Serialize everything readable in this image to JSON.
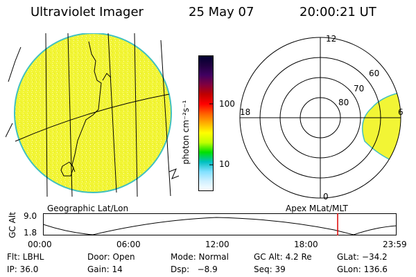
{
  "header": {
    "instrument": "Ultraviolet Imager",
    "date": "25 May 07",
    "time": "20:00:21 UT"
  },
  "colorbar": {
    "label": "photon cm⁻²s⁻¹",
    "ticks": [
      "100",
      "10"
    ],
    "colors": [
      "#000030",
      "#200040",
      "#400060",
      "#800040",
      "#c00000",
      "#ff0000",
      "#ff6000",
      "#ffb000",
      "#ffff00",
      "#c0ff00",
      "#00e000",
      "#00c0c0",
      "#80e0ff",
      "#d0f0ff",
      "#ffffff"
    ]
  },
  "polar_plot": {
    "hour_labels": [
      "12",
      "18",
      "6",
      "0"
    ],
    "lat_labels": [
      "60",
      "70",
      "80"
    ]
  },
  "timeline": {
    "ylabel": "GC Alt",
    "y_ticks": [
      "9.0",
      "1.8"
    ],
    "left_caption": "Geographic Lat/Lon",
    "right_caption": "Apex MLat/MLT",
    "x_ticks": [
      "00:00",
      "06:00",
      "12:00",
      "18:00",
      "23:59"
    ],
    "marker_time_hours": 20.0,
    "marker_color": "#dd0000"
  },
  "footer": {
    "flt": "Flt: LBHL",
    "door": "Door: Open",
    "mode": "Mode: Normal",
    "gc_alt": "GC Alt: 4.2 Re",
    "glat": "GLat: −34.2",
    "ip": "IP: 36.0",
    "gain": "Gain: 14",
    "dsp": "Dsp:   −8.9",
    "seq": "Seq: 39",
    "glon": "GLon: 136.6"
  },
  "colors": {
    "aurora_fill": "#f2f535",
    "aurora_edge": "#40c0c0"
  }
}
